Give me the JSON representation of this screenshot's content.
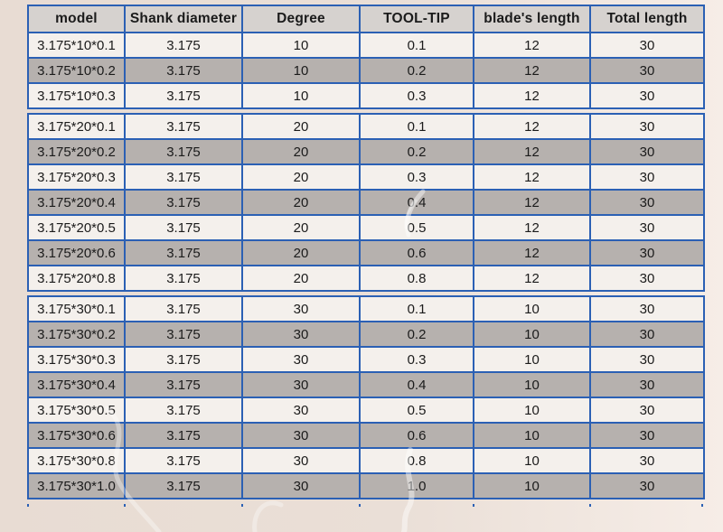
{
  "colors": {
    "table_border": "#2b60b4",
    "row_light": "#f4f0ec",
    "row_dark": "#b6b1ae",
    "header_bg": "#d6d2cf",
    "page_bg": "#e9ddd4",
    "text": "#1b1b1b"
  },
  "chart_data": {
    "type": "table",
    "columns": [
      "model",
      "Shank diameter",
      "Degree",
      "TOOL-TIP",
      "blade's length",
      "Total length"
    ],
    "groups": [
      {
        "degree": "10",
        "rows": [
          [
            "3.175*10*0.1",
            "3.175",
            "10",
            "0.1",
            "12",
            "30"
          ],
          [
            "3.175*10*0.2",
            "3.175",
            "10",
            "0.2",
            "12",
            "30"
          ],
          [
            "3.175*10*0.3",
            "3.175",
            "10",
            "0.3",
            "12",
            "30"
          ]
        ]
      },
      {
        "degree": "20",
        "rows": [
          [
            "3.175*20*0.1",
            "3.175",
            "20",
            "0.1",
            "12",
            "30"
          ],
          [
            "3.175*20*0.2",
            "3.175",
            "20",
            "0.2",
            "12",
            "30"
          ],
          [
            "3.175*20*0.3",
            "3.175",
            "20",
            "0.3",
            "12",
            "30"
          ],
          [
            "3.175*20*0.4",
            "3.175",
            "20",
            "0.4",
            "12",
            "30"
          ],
          [
            "3.175*20*0.5",
            "3.175",
            "20",
            "0.5",
            "12",
            "30"
          ],
          [
            "3.175*20*0.6",
            "3.175",
            "20",
            "0.6",
            "12",
            "30"
          ],
          [
            "3.175*20*0.8",
            "3.175",
            "20",
            "0.8",
            "12",
            "30"
          ]
        ]
      },
      {
        "degree": "30",
        "rows": [
          [
            "3.175*30*0.1",
            "3.175",
            "30",
            "0.1",
            "10",
            "30"
          ],
          [
            "3.175*30*0.2",
            "3.175",
            "30",
            "0.2",
            "10",
            "30"
          ],
          [
            "3.175*30*0.3",
            "3.175",
            "30",
            "0.3",
            "10",
            "30"
          ],
          [
            "3.175*30*0.4",
            "3.175",
            "30",
            "0.4",
            "10",
            "30"
          ],
          [
            "3.175*30*0.5",
            "3.175",
            "30",
            "0.5",
            "10",
            "30"
          ],
          [
            "3.175*30*0.6",
            "3.175",
            "30",
            "0.6",
            "10",
            "30"
          ],
          [
            "3.175*30*0.8",
            "3.175",
            "30",
            "0.8",
            "10",
            "30"
          ],
          [
            "3.175*30*1.0",
            "3.175",
            "30",
            "1.0",
            "10",
            "30"
          ]
        ]
      }
    ]
  }
}
